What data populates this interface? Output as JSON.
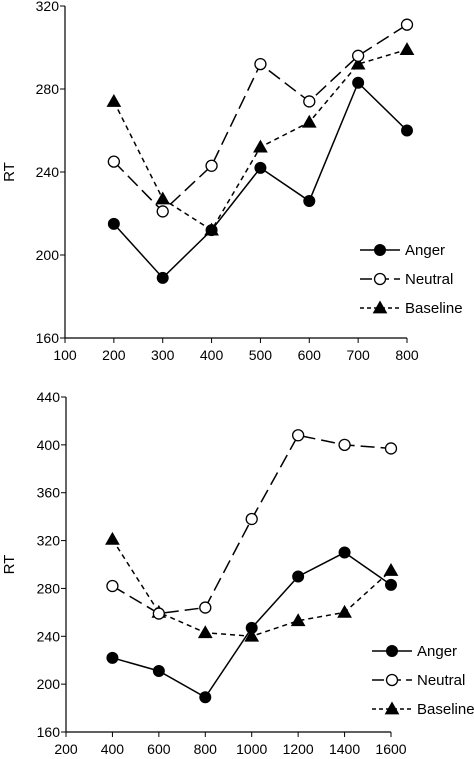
{
  "chart_data": [
    {
      "type": "line",
      "title": "",
      "xlabel": "",
      "ylabel": "RT",
      "xlim": [
        100,
        800
      ],
      "ylim": [
        160,
        320
      ],
      "xticks": [
        100,
        200,
        300,
        400,
        500,
        600,
        700,
        800
      ],
      "yticks": [
        160,
        200,
        240,
        280,
        320
      ],
      "grid": false,
      "legend_position": "bottom-right",
      "x": [
        200,
        300,
        400,
        500,
        600,
        700,
        800
      ],
      "series": [
        {
          "name": "Anger",
          "marker": "filled-circle",
          "line": "solid",
          "values": [
            215,
            189,
            212,
            242,
            226,
            283,
            260
          ]
        },
        {
          "name": "Neutral",
          "marker": "open-circle",
          "line": "long-dash",
          "values": [
            245,
            221,
            243,
            292,
            274,
            296,
            311
          ]
        },
        {
          "name": "Baseline",
          "marker": "filled-triangle",
          "line": "short-dash",
          "values": [
            274,
            227,
            212,
            252,
            264,
            292,
            299
          ]
        }
      ]
    },
    {
      "type": "line",
      "title": "",
      "xlabel": "",
      "ylabel": "RT",
      "xlim": [
        200,
        1600
      ],
      "ylim": [
        160,
        440
      ],
      "xticks": [
        200,
        400,
        600,
        800,
        1000,
        1200,
        1400,
        1600
      ],
      "yticks": [
        160,
        200,
        240,
        280,
        320,
        360,
        400,
        440
      ],
      "grid": false,
      "legend_position": "bottom-right",
      "x": [
        400,
        600,
        800,
        1000,
        1200,
        1400,
        1600
      ],
      "series": [
        {
          "name": "Anger",
          "marker": "filled-circle",
          "line": "solid",
          "values": [
            222,
            211,
            189,
            247,
            290,
            310,
            283
          ]
        },
        {
          "name": "Neutral",
          "marker": "open-circle",
          "line": "long-dash",
          "values": [
            282,
            259,
            264,
            338,
            408,
            400,
            397
          ]
        },
        {
          "name": "Baseline",
          "marker": "filled-triangle",
          "line": "short-dash",
          "values": [
            321,
            260,
            243,
            240,
            253,
            260,
            295
          ]
        }
      ]
    }
  ]
}
